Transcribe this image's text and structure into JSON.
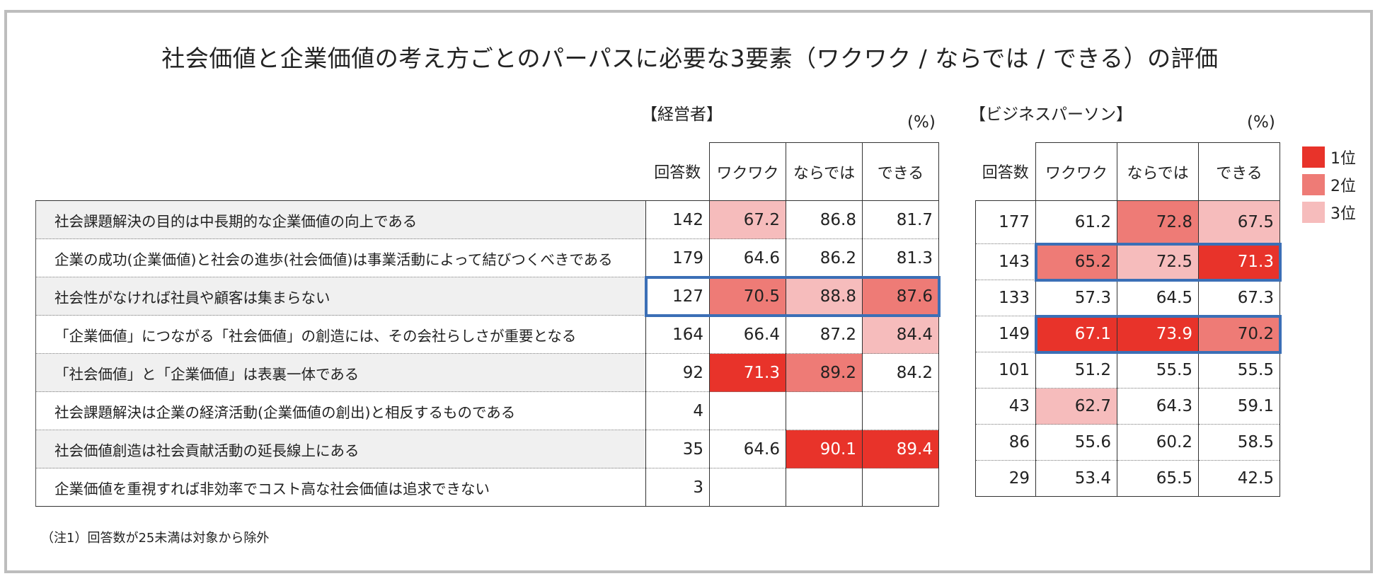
{
  "title": "社会価値と企業価値の考え方ごとのパーパスに必要な3要素（ワクワク / ならでは / できる）の評価",
  "unit": "(%)",
  "note": "（注1）回答数が25未満は対象から除外",
  "colors": {
    "rank1": "#e8332a",
    "rank2": "#ee7b76",
    "rank3": "#f6bcbc",
    "frame": "#bdbdbd",
    "highlight": "#3b6fb6",
    "row_shade": "#f0f0f0"
  },
  "legend": [
    {
      "label": "1位",
      "rank": 1
    },
    {
      "label": "2位",
      "rank": 2
    },
    {
      "label": "3位",
      "rank": 3
    }
  ],
  "columns": [
    "回答数",
    "ワクワク",
    "ならでは",
    "できる"
  ],
  "chart_data": {
    "type": "table",
    "title": "社会価値と企業価値の考え方ごとのパーパスに必要な3要素（ワクワク / ならでは / できる）の評価",
    "groups": [
      {
        "name": "【経営者】",
        "rows": [
          {
            "statement": "社会課題解決の目的は中長期的な企業価値の向上である",
            "n": "142",
            "values": [
              "67.2",
              "86.8",
              "81.7"
            ],
            "rank": [
              3,
              0,
              0
            ],
            "highlight": false,
            "shade": true
          },
          {
            "statement": "企業の成功(企業価値)と社会の進歩(社会価値)は事業活動によって結びつくべきである",
            "n": "179",
            "values": [
              "64.6",
              "86.2",
              "81.3"
            ],
            "rank": [
              0,
              0,
              0
            ],
            "highlight": false,
            "shade": false
          },
          {
            "statement": "社会性がなければ社員や顧客は集まらない",
            "n": "127",
            "values": [
              "70.5",
              "88.8",
              "87.6"
            ],
            "rank": [
              2,
              3,
              2
            ],
            "highlight": true,
            "shade": true
          },
          {
            "statement": "「企業価値」につながる「社会価値」の創造には、その会社らしさが重要となる",
            "n": "164",
            "values": [
              "66.4",
              "87.2",
              "84.4"
            ],
            "rank": [
              0,
              0,
              3
            ],
            "highlight": false,
            "shade": false
          },
          {
            "statement": "「社会価値」と「企業価値」は表裏一体である",
            "n": "92",
            "values": [
              "71.3",
              "89.2",
              "84.2"
            ],
            "rank": [
              1,
              2,
              0
            ],
            "highlight": false,
            "shade": true
          },
          {
            "statement": "社会課題解決は企業の経済活動(企業価値の創出)と相反するものである",
            "n": "4",
            "values": [
              "",
              "",
              ""
            ],
            "rank": [
              0,
              0,
              0
            ],
            "highlight": false,
            "shade": false
          },
          {
            "statement": "社会価値創造は社会貢献活動の延長線上にある",
            "n": "35",
            "values": [
              "64.6",
              "90.1",
              "89.4"
            ],
            "rank": [
              0,
              1,
              1
            ],
            "highlight": false,
            "shade": true
          },
          {
            "statement": "企業価値を重視すれば非効率でコスト高な社会価値は追求できない",
            "n": "3",
            "values": [
              "",
              "",
              ""
            ],
            "rank": [
              0,
              0,
              0
            ],
            "highlight": false,
            "shade": false
          }
        ]
      },
      {
        "name": "【ビジネスパーソン】",
        "rows": [
          {
            "n": "177",
            "values": [
              "61.2",
              "72.8",
              "67.5"
            ],
            "rank": [
              0,
              2,
              3
            ],
            "highlight": false
          },
          {
            "n": "143",
            "values": [
              "65.2",
              "72.5",
              "71.3"
            ],
            "rank": [
              2,
              3,
              1
            ],
            "highlight": true
          },
          {
            "n": "133",
            "values": [
              "57.3",
              "64.5",
              "67.3"
            ],
            "rank": [
              0,
              0,
              0
            ],
            "highlight": false
          },
          {
            "n": "149",
            "values": [
              "67.1",
              "73.9",
              "70.2"
            ],
            "rank": [
              1,
              1,
              2
            ],
            "highlight": true
          },
          {
            "n": "101",
            "values": [
              "51.2",
              "55.5",
              "55.5"
            ],
            "rank": [
              0,
              0,
              0
            ],
            "highlight": false
          },
          {
            "n": "43",
            "values": [
              "62.7",
              "64.3",
              "59.1"
            ],
            "rank": [
              3,
              0,
              0
            ],
            "highlight": false
          },
          {
            "n": "86",
            "values": [
              "55.6",
              "60.2",
              "58.5"
            ],
            "rank": [
              0,
              0,
              0
            ],
            "highlight": false
          },
          {
            "n": "29",
            "values": [
              "53.4",
              "65.5",
              "42.5"
            ],
            "rank": [
              0,
              0,
              0
            ],
            "highlight": false
          }
        ]
      }
    ]
  }
}
